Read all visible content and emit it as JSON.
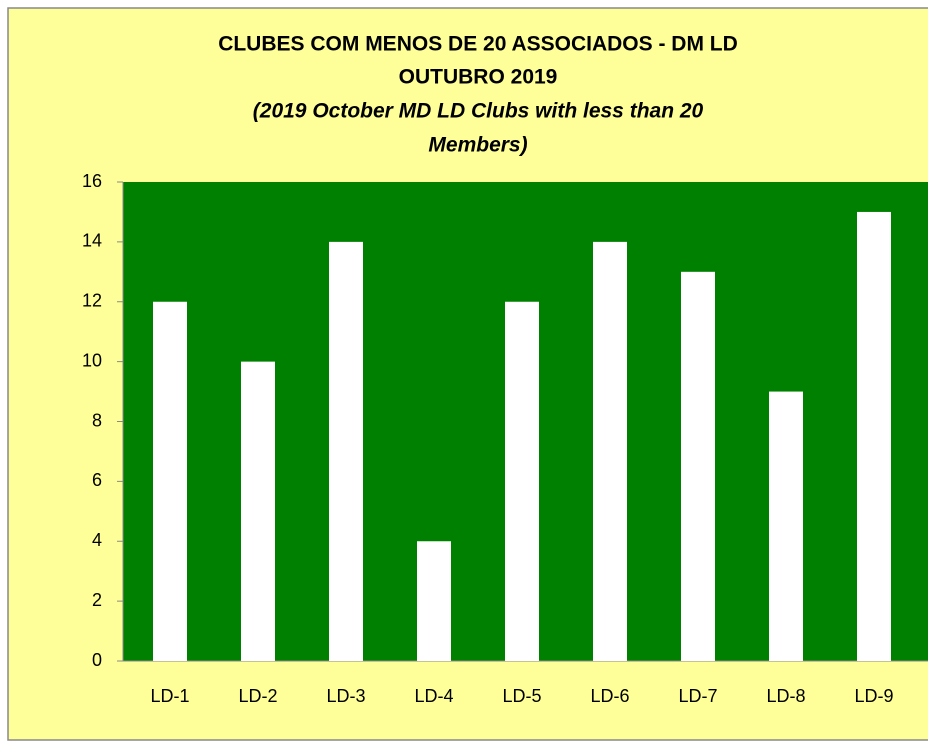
{
  "chart_data": {
    "type": "bar",
    "title": [
      "CLUBES COM MENOS DE 20 ASSOCIADOS - DM LD",
      "OUTUBRO 2019"
    ],
    "subtitle": [
      "(2019 October MD LD  Clubs with less than 20",
      "Members)"
    ],
    "categories": [
      "LD-1",
      "LD-2",
      "LD-3",
      "LD-4",
      "LD-5",
      "LD-6",
      "LD-7",
      "LD-8",
      "LD-9"
    ],
    "values": [
      12,
      10,
      14,
      4,
      12,
      14,
      13,
      9,
      15
    ],
    "color": "#ffffff",
    "plot_background": "#008000",
    "background": "#ffff99",
    "ylim": [
      0,
      16
    ],
    "yticks": [
      0,
      2,
      4,
      6,
      8,
      10,
      12,
      14,
      16
    ],
    "grid": false
  }
}
